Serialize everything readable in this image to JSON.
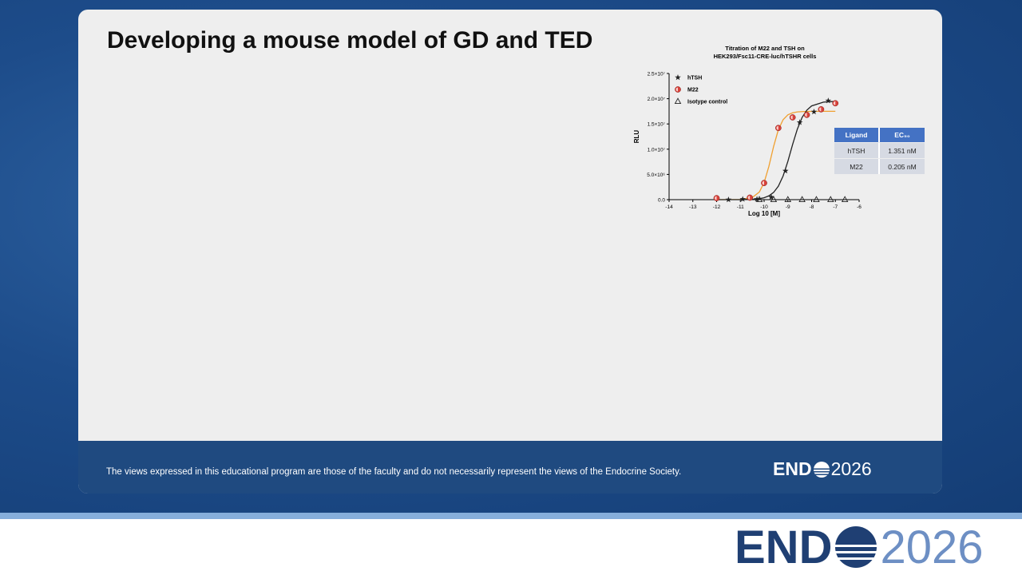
{
  "slide": {
    "title": "Developing a mouse model of GD and TED"
  },
  "chart_data": {
    "type": "scatter",
    "title": [
      "Titration of M22 and TSH on",
      "HEK293/Fsc11-CRE-luc/hTSHR cells"
    ],
    "xlabel": "Log 10 [M]",
    "ylabel": "RLU",
    "xlim": [
      -14,
      -6
    ],
    "xticks": [
      -14,
      -13,
      -12,
      -11,
      -10,
      -9,
      -8,
      -7,
      -6
    ],
    "ylim": [
      0,
      25000000
    ],
    "yticks": [
      {
        "value": 0,
        "label": "0.0"
      },
      {
        "value": 5000000,
        "label": "5.0×10⁶"
      },
      {
        "value": 10000000,
        "label": "1.0×10⁷"
      },
      {
        "value": 15000000,
        "label": "1.5×10⁷"
      },
      {
        "value": 20000000,
        "label": "2.0×10⁷"
      },
      {
        "value": 25000000,
        "label": "2.5×10⁷"
      }
    ],
    "legend": "upper left",
    "series": [
      {
        "name": "hTSH",
        "marker": "star",
        "color": "#222222",
        "x": [
          -11.5,
          -10.9,
          -10.3,
          -9.7,
          -9.1,
          -8.5,
          -7.9,
          -7.3
        ],
        "values": [
          0,
          100000,
          100000,
          500000,
          5700000,
          15300000,
          17400000,
          19600000
        ]
      },
      {
        "name": "M22",
        "marker": "half-circle",
        "color": "#d9413a",
        "x": [
          -12,
          -10.6,
          -10,
          -9.4,
          -8.8,
          -8.2,
          -7.6,
          -7.0
        ],
        "values": [
          300000,
          400000,
          3300000,
          14200000,
          16300000,
          16800000,
          17900000,
          19100000
        ]
      },
      {
        "name": "Isotype control",
        "marker": "triangle",
        "color": "#222222",
        "x": [
          -10.2,
          -9.6,
          -9,
          -8.4,
          -7.8,
          -7.2,
          -6.6
        ],
        "values": [
          0,
          0,
          0,
          0,
          0,
          0,
          0
        ]
      }
    ],
    "fits": [
      {
        "color": "#f0a030",
        "x": [
          -12,
          -11,
          -10.5,
          -10.2,
          -10,
          -9.8,
          -9.6,
          -9.4,
          -9.2,
          -9,
          -8.8,
          -8.6,
          -8.4,
          -8.2,
          -8,
          -7.5,
          -7
        ],
        "values": [
          0,
          40000,
          410000,
          1520000,
          3380000,
          6580000,
          10540000,
          13860000,
          15840000,
          16800000,
          17210000,
          17390000,
          17450000,
          17480000,
          17490000,
          17500000,
          17500000
        ]
      },
      {
        "color": "#222222",
        "x": [
          -12,
          -11,
          -10.5,
          -10.2,
          -10,
          -9.8,
          -9.6,
          -9.4,
          -9.2,
          -9,
          -8.8,
          -8.6,
          -8.4,
          -8.2,
          -8,
          -7.5,
          -7
        ],
        "values": [
          0,
          10000,
          70000,
          190000,
          380000,
          750000,
          1430000,
          2670000,
          4690000,
          7590000,
          10920000,
          13990000,
          16290000,
          17740000,
          18570000,
          19330000,
          19470000
        ]
      }
    ]
  },
  "table": {
    "header": [
      "Ligand",
      "EC₅₀"
    ],
    "rows": [
      [
        "hTSH",
        "1.351 nM"
      ],
      [
        "M22",
        "0.205 nM"
      ]
    ]
  },
  "footer": {
    "disclaimer": "The views expressed in this educational program are those of the faculty and do not necessarily represent the views of the Endocrine Society.",
    "logo_left": "END",
    "logo_right": "2026"
  },
  "brand": {
    "logo_left": "END",
    "logo_right": "2026"
  }
}
